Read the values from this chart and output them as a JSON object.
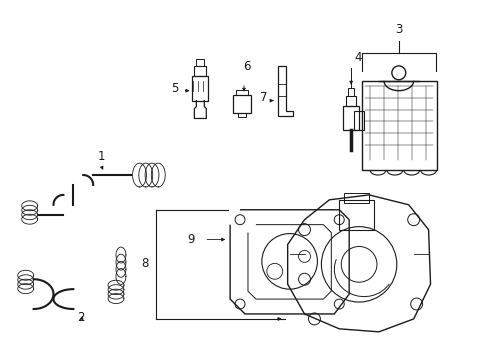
{
  "bg_color": "#ffffff",
  "fig_width": 4.89,
  "fig_height": 3.6,
  "dpi": 100,
  "line_color": "#1a1a1a",
  "label_color": "#000000",
  "font_size": 8.5
}
